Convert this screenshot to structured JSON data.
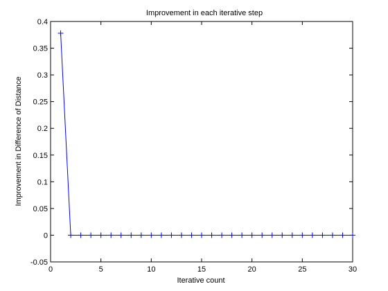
{
  "chart_data": {
    "type": "line",
    "title": "Improvement in each iterative step",
    "xlabel": "Iterative count",
    "ylabel": "Improvement in Difference of Distance",
    "xlim": [
      0,
      30
    ],
    "ylim": [
      -0.05,
      0.4
    ],
    "xticks": [
      0,
      5,
      10,
      15,
      20,
      25,
      30
    ],
    "yticks": [
      -0.05,
      0,
      0.05,
      0.1,
      0.15,
      0.2,
      0.25,
      0.3,
      0.35,
      0.4
    ],
    "xtick_labels": [
      "0",
      "5",
      "10",
      "15",
      "20",
      "25",
      "30"
    ],
    "ytick_labels": [
      "-0.05",
      "0",
      "0.05",
      "0.1",
      "0.15",
      "0.2",
      "0.25",
      "0.3",
      "0.35",
      "0.4"
    ],
    "grid": false,
    "marker": "plus",
    "series": [
      {
        "color": "#0000ff",
        "x": [
          1,
          2,
          3,
          4,
          5,
          6,
          7,
          8,
          9,
          10,
          11,
          12,
          13,
          14,
          15,
          16,
          17,
          18,
          19,
          20,
          21,
          22,
          23,
          24,
          25,
          26,
          27,
          28,
          29,
          30
        ],
        "y": [
          0.378,
          0,
          0,
          0,
          0,
          0,
          0,
          0,
          0,
          0,
          0,
          0,
          0,
          0,
          0,
          0,
          0,
          0,
          0,
          0,
          0,
          0,
          0,
          0,
          0,
          0,
          0,
          0,
          0,
          0
        ]
      }
    ]
  }
}
